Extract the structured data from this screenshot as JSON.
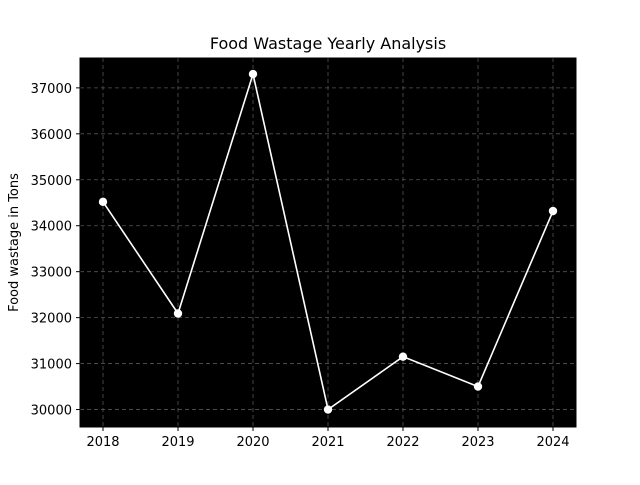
{
  "chart_data": {
    "type": "line",
    "title": "Food Wastage Yearly Analysis",
    "xlabel": "",
    "ylabel": "Food wastage in Tons",
    "categories": [
      "2018",
      "2019",
      "2020",
      "2021",
      "2022",
      "2023",
      "2024"
    ],
    "series": [
      {
        "values": [
          34520,
          32090,
          37300,
          30000,
          31150,
          30500,
          34320
        ]
      }
    ],
    "y_ticks": [
      30000,
      31000,
      32000,
      33000,
      34000,
      35000,
      36000,
      37000
    ],
    "ylim": [
      29620,
      37650
    ],
    "grid": true,
    "colors": {
      "plot_background": "#000000",
      "line": "#ffffff",
      "marker": "#ffffff",
      "grid": "#555555"
    }
  }
}
